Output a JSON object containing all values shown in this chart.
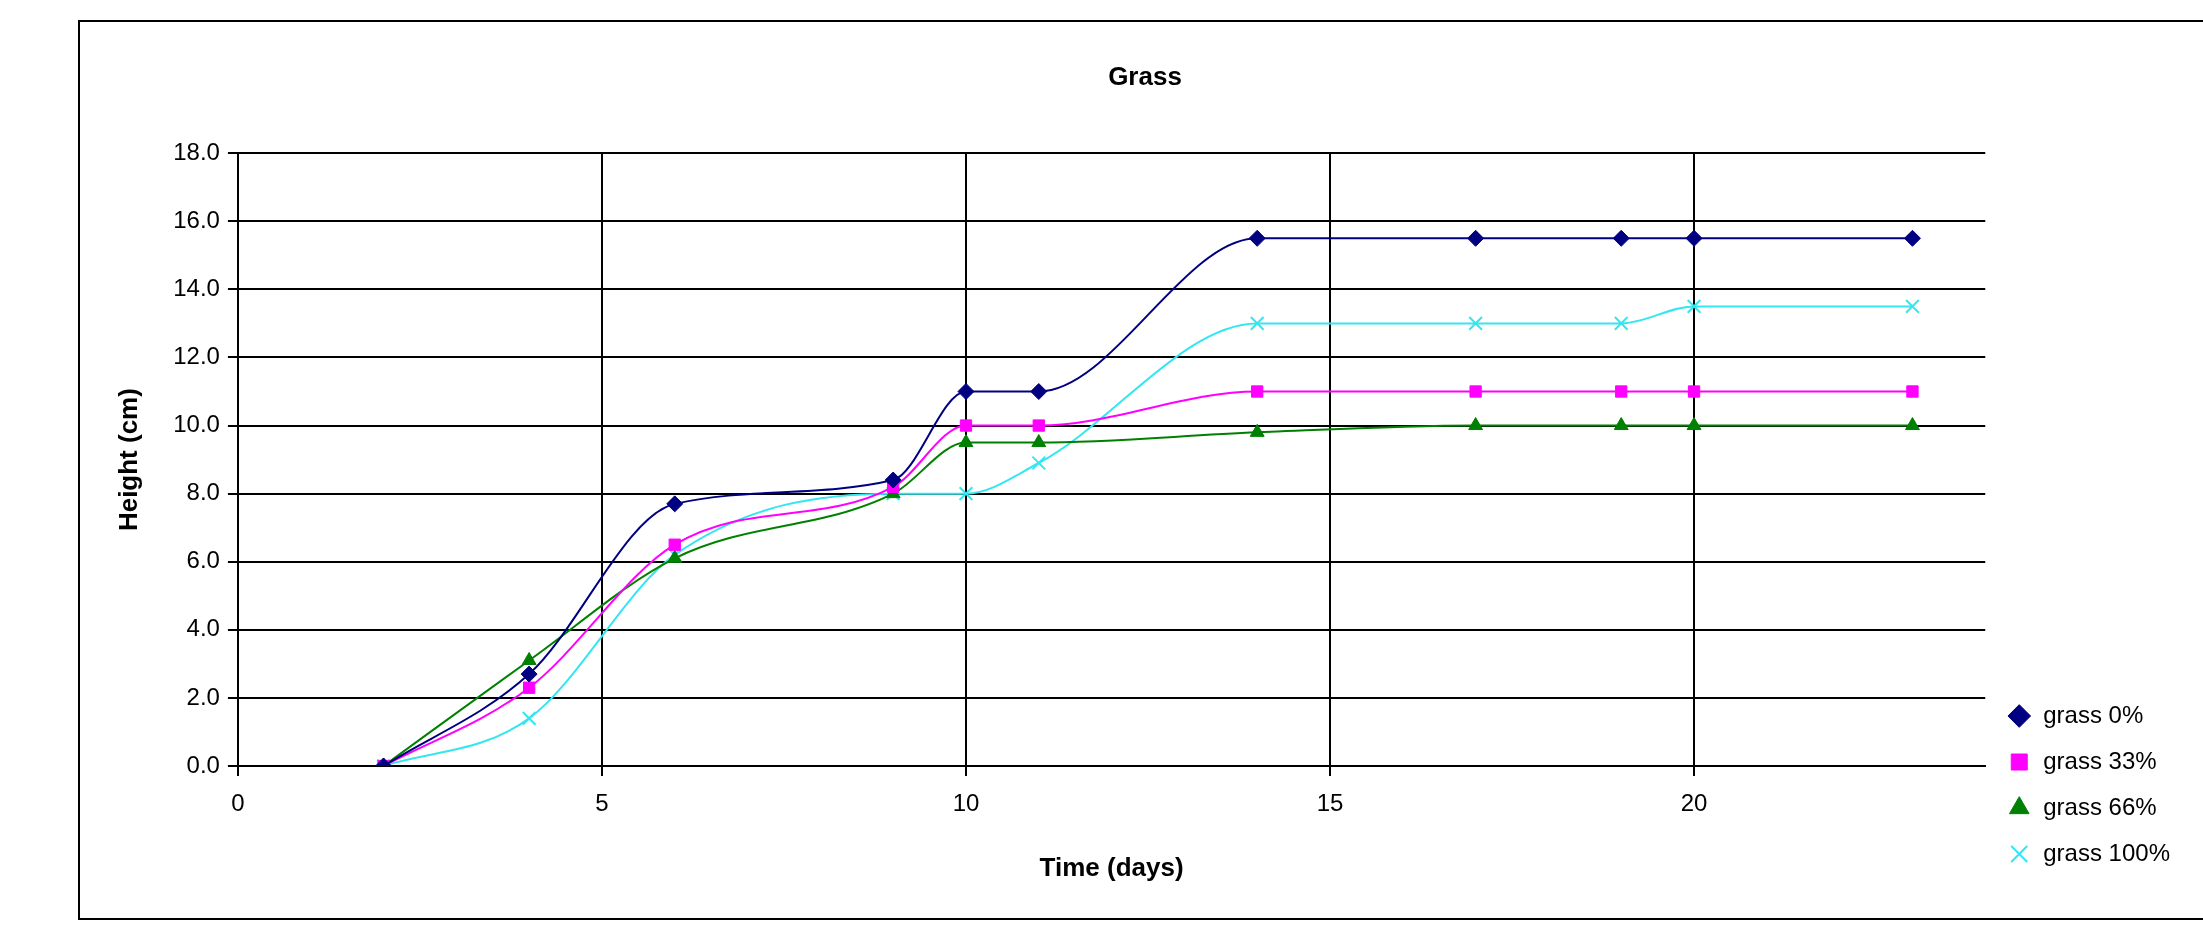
{
  "chart_data": {
    "type": "line",
    "title": "Grass",
    "xlabel": "Time (days)",
    "ylabel": "Height (cm)",
    "xlim": [
      0,
      24
    ],
    "xticks": [
      0,
      5,
      10,
      15,
      20
    ],
    "ylim": [
      0,
      18
    ],
    "yticks": [
      {
        "value": 0,
        "label": "0.0"
      },
      {
        "value": 2,
        "label": "2.0"
      },
      {
        "value": 4,
        "label": "4.0"
      },
      {
        "value": 6,
        "label": "6.0"
      },
      {
        "value": 8,
        "label": "8.0"
      },
      {
        "value": 10,
        "label": "10.0"
      },
      {
        "value": 12,
        "label": "12.0"
      },
      {
        "value": 14,
        "label": "14.0"
      },
      {
        "value": 16,
        "label": "16.0"
      },
      {
        "value": 18,
        "label": "18.0"
      }
    ],
    "x": [
      2,
      4,
      6,
      9,
      10,
      11,
      14,
      17,
      19,
      20,
      23
    ],
    "grid": true,
    "legend": "right",
    "line_style": "solid",
    "series": [
      {
        "name": "grass 0%",
        "color": "#000080",
        "marker": "diamond",
        "values": [
          0,
          2.7,
          7.7,
          8.4,
          11.0,
          11.0,
          15.5,
          15.5,
          15.5,
          15.5,
          15.5
        ]
      },
      {
        "name": "grass 33%",
        "color": "#ff00ff",
        "marker": "square",
        "values": [
          0,
          2.3,
          6.5,
          8.2,
          10.0,
          10.0,
          11.0,
          11.0,
          11.0,
          11.0,
          11.0
        ]
      },
      {
        "name": "grass 66%",
        "color": "#008000",
        "marker": "triangle",
        "values": [
          0,
          3.1,
          6.1,
          8.0,
          9.5,
          9.5,
          9.8,
          10.0,
          10.0,
          10.0,
          10.0
        ]
      },
      {
        "name": "grass 100%",
        "color": "#33e6f0",
        "marker": "cross",
        "values": [
          0,
          1.4,
          6.2,
          8.0,
          8.0,
          8.9,
          13.0,
          13.0,
          13.0,
          13.5,
          13.5
        ]
      }
    ]
  }
}
